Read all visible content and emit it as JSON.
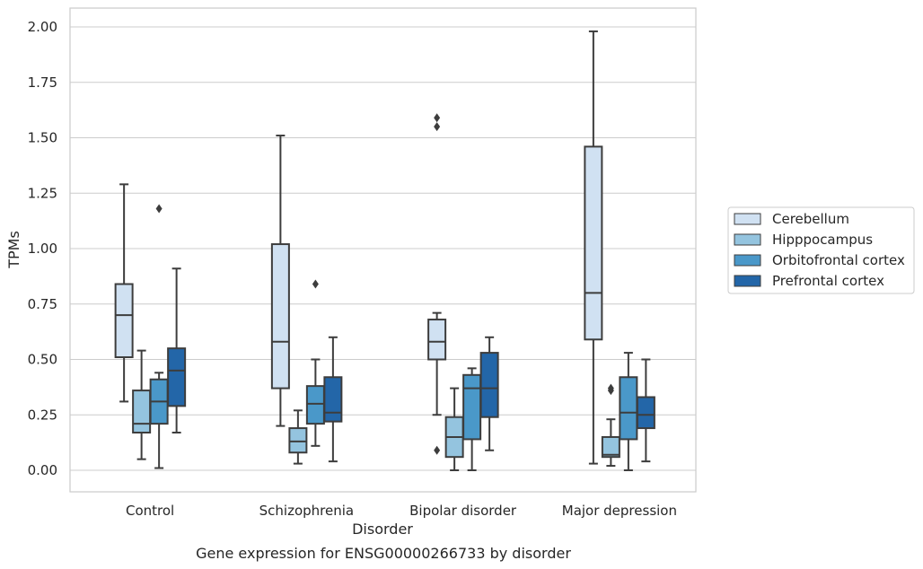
{
  "chart_data": {
    "type": "box",
    "title": "",
    "caption": "Gene expression for ENSG00000266733 by disorder",
    "xlabel": "Disorder",
    "ylabel": "TPMs",
    "ylim": [
      -0.1,
      2.08
    ],
    "yticks": [
      "0.00",
      "0.25",
      "0.50",
      "0.75",
      "1.00",
      "1.25",
      "1.50",
      "1.75",
      "2.00"
    ],
    "ytick_values": [
      0,
      0.25,
      0.5,
      0.75,
      1.0,
      1.25,
      1.5,
      1.75,
      2.0
    ],
    "grid": "horizontal",
    "legend_position": "right",
    "categories": [
      "Control",
      "Schizophrenia",
      "Bipolar disorder",
      "Major depression"
    ],
    "series": [
      {
        "name": "Cerebellum",
        "color": "#d0e1f2",
        "boxes": [
          {
            "whislo": 0.31,
            "q1": 0.51,
            "med": 0.7,
            "q3": 0.84,
            "whishi": 1.29,
            "fliers": []
          },
          {
            "whislo": 0.2,
            "q1": 0.37,
            "med": 0.58,
            "q3": 1.02,
            "whishi": 1.51,
            "fliers": []
          },
          {
            "whislo": 0.25,
            "q1": 0.5,
            "med": 0.58,
            "q3": 0.68,
            "whishi": 0.71,
            "fliers": [
              0.09,
              1.55,
              1.59
            ]
          },
          {
            "whislo": 0.03,
            "q1": 0.59,
            "med": 0.8,
            "q3": 1.46,
            "whishi": 1.98,
            "fliers": []
          }
        ]
      },
      {
        "name": "Hipppocampus",
        "color": "#94c4df",
        "boxes": [
          {
            "whislo": 0.05,
            "q1": 0.17,
            "med": 0.21,
            "q3": 0.36,
            "whishi": 0.54,
            "fliers": []
          },
          {
            "whislo": 0.03,
            "q1": 0.08,
            "med": 0.13,
            "q3": 0.19,
            "whishi": 0.27,
            "fliers": []
          },
          {
            "whislo": 0.0,
            "q1": 0.06,
            "med": 0.15,
            "q3": 0.24,
            "whishi": 0.37,
            "fliers": []
          },
          {
            "whislo": 0.02,
            "q1": 0.06,
            "med": 0.07,
            "q3": 0.15,
            "whishi": 0.23,
            "fliers": [
              0.36,
              0.37
            ]
          }
        ]
      },
      {
        "name": "Orbitofrontal cortex",
        "color": "#4a98c9",
        "boxes": [
          {
            "whislo": 0.01,
            "q1": 0.21,
            "med": 0.31,
            "q3": 0.41,
            "whishi": 0.44,
            "fliers": [
              1.18
            ]
          },
          {
            "whislo": 0.11,
            "q1": 0.21,
            "med": 0.3,
            "q3": 0.38,
            "whishi": 0.5,
            "fliers": [
              0.84
            ]
          },
          {
            "whislo": 0.0,
            "q1": 0.14,
            "med": 0.37,
            "q3": 0.43,
            "whishi": 0.46,
            "fliers": []
          },
          {
            "whislo": 0.0,
            "q1": 0.14,
            "med": 0.26,
            "q3": 0.42,
            "whishi": 0.53,
            "fliers": []
          }
        ]
      },
      {
        "name": "Prefrontal cortex",
        "color": "#2366a8",
        "boxes": [
          {
            "whislo": 0.17,
            "q1": 0.29,
            "med": 0.45,
            "q3": 0.55,
            "whishi": 0.91,
            "fliers": []
          },
          {
            "whislo": 0.04,
            "q1": 0.22,
            "med": 0.26,
            "q3": 0.42,
            "whishi": 0.6,
            "fliers": []
          },
          {
            "whislo": 0.09,
            "q1": 0.24,
            "med": 0.37,
            "q3": 0.53,
            "whishi": 0.6,
            "fliers": []
          },
          {
            "whislo": 0.04,
            "q1": 0.19,
            "med": 0.25,
            "q3": 0.33,
            "whishi": 0.5,
            "fliers": []
          }
        ]
      }
    ]
  }
}
